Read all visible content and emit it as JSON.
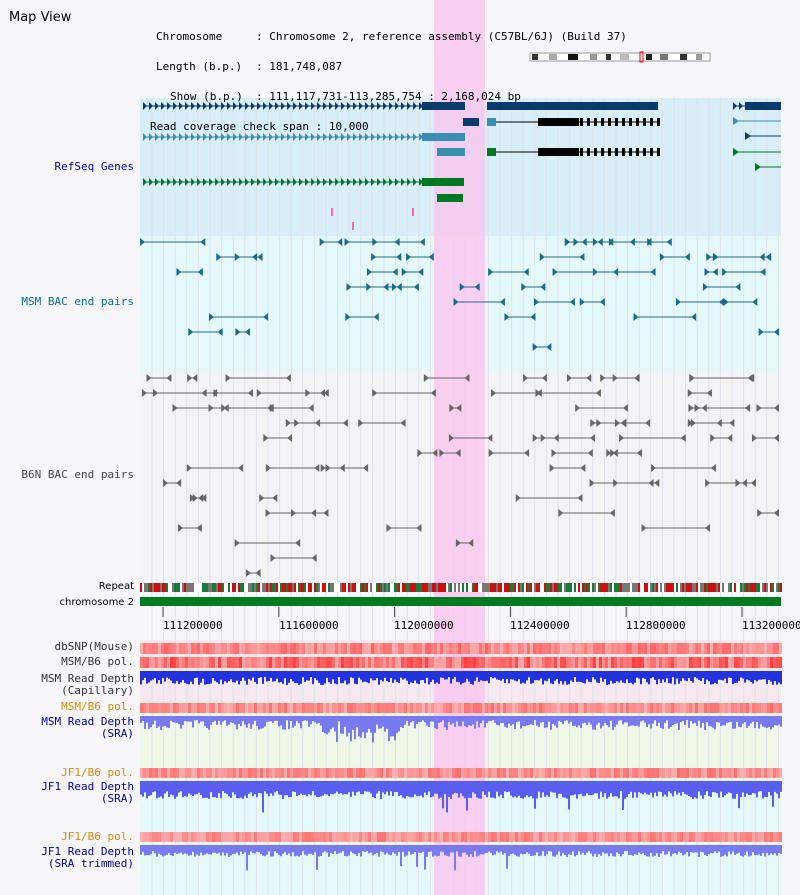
{
  "map_title": "Map View",
  "header": {
    "chromosome_key": "Chromosome",
    "chromosome_value": "Chromosome 2, reference assembly (C57BL/6J) (Build 37)",
    "length_key": "Length (b.p.)",
    "length_value": "181,748,087",
    "show_key": "Show (b.p.)",
    "show_value": "111,117,731-113,285,754 : 2,168,024 bp",
    "span_key": "Read coverage check span",
    "span_value": "10,000"
  },
  "tracks": {
    "refseq": "RefSeq Genes",
    "msm_bac": "MSM BAC end pairs",
    "b6n_bac": "B6N BAC end pairs",
    "repeat": "Repeat",
    "chromosome": "chromosome 2",
    "dbsnp": "dbSNP(Mouse)",
    "msm_b6_pol_1": "MSM/B6 pol.",
    "msm_depth_cap_1": "MSM Read Depth",
    "msm_depth_cap_2": "(Capillary)",
    "msm_b6_pol_2": "MSM/B6 pol.",
    "msm_depth_sra_1": "MSM Read Depth",
    "msm_depth_sra_2": "(SRA)",
    "jf1_b6_pol_1": "JF1/B6 pol.",
    "jf1_depth_sra_1": "JF1 Read Depth",
    "jf1_depth_sra_2": "(SRA)",
    "jf1_b6_pol_2": "JF1/B6 pol.",
    "jf1_depth_trim_1": "JF1 Read Depth",
    "jf1_depth_trim_2": "(SRA trimmed)"
  },
  "axis": {
    "ticks": [
      "111200000",
      "111600000",
      "112000000",
      "112400000",
      "112800000",
      "113200000"
    ]
  },
  "colors": {
    "refseq_label": "#000099",
    "msm_bac_label": "#006f8f",
    "b6n_bac_label": "#444444",
    "pol_orange": "#dd8800",
    "depth_blue": "#000099",
    "highlight": "#f9c8ee",
    "refseq_bg": "#d8eef8",
    "msm_bg": "#e5f8fa",
    "chromosome_green": "#007a20"
  }
}
